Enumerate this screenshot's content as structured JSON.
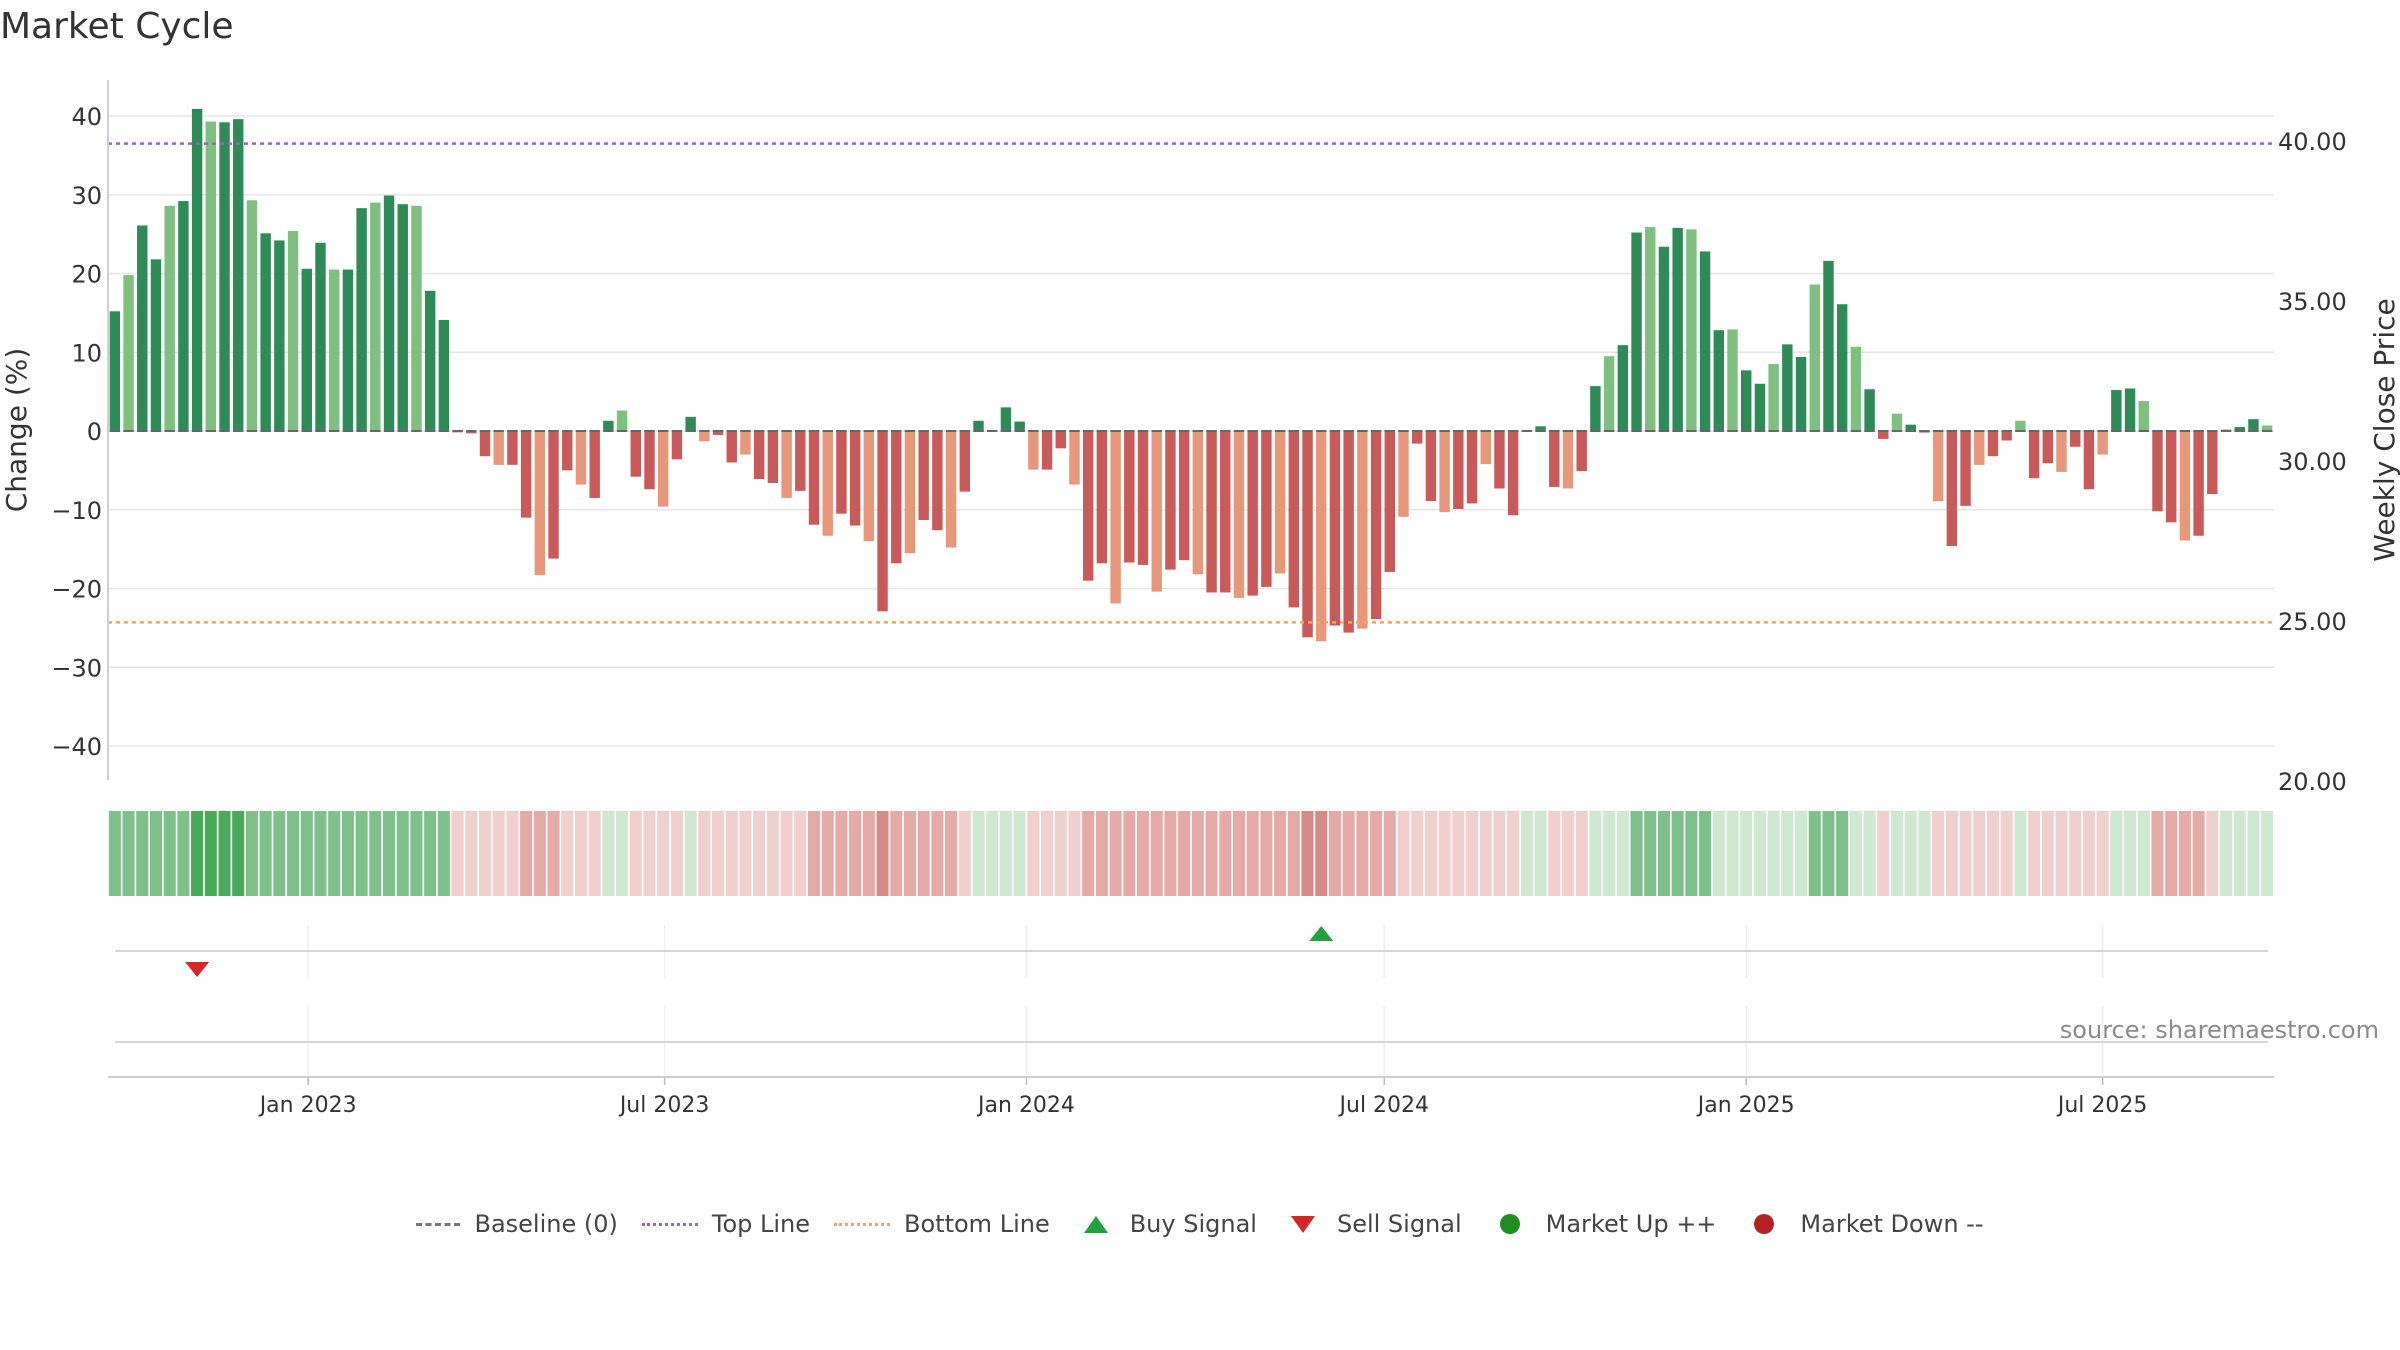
{
  "title": "Market Cycle",
  "source": "source: sharemaestro.com",
  "chart_data": {
    "type": "bar",
    "title": "Market Cycle",
    "ylabel": "Change (%)",
    "y2label": "Weekly Close Price",
    "ylim": [
      -44,
      44
    ],
    "y2lim": [
      20,
      42
    ],
    "yticks": [
      {
        "v": 40,
        "label": "40"
      },
      {
        "v": 30,
        "label": "30"
      },
      {
        "v": 20,
        "label": "20"
      },
      {
        "v": 10,
        "label": "10"
      },
      {
        "v": 0,
        "label": "0"
      },
      {
        "v": -10,
        "label": "−10"
      },
      {
        "v": -20,
        "label": "−20"
      },
      {
        "v": -30,
        "label": "−30"
      },
      {
        "v": -40,
        "label": "−40"
      }
    ],
    "y2ticks": [
      {
        "v": 40,
        "label": "40.00"
      },
      {
        "v": 35,
        "label": "35.00"
      },
      {
        "v": 30,
        "label": "30.00"
      },
      {
        "v": 25,
        "label": "25.00"
      },
      {
        "v": 20,
        "label": "20.00"
      }
    ],
    "xticks": [
      {
        "w": 14.6,
        "label": "Jan 2023"
      },
      {
        "w": 40.6,
        "label": "Jul 2023"
      },
      {
        "w": 67.0,
        "label": "Jan 2024"
      },
      {
        "w": 93.1,
        "label": "Jul 2024"
      },
      {
        "w": 119.5,
        "label": "Jan 2025"
      },
      {
        "w": 145.5,
        "label": "Jul 2025"
      }
    ],
    "grid": true,
    "top_line": 36.5,
    "bottom_line": -24.3,
    "values": [
      15.2,
      19.8,
      26.1,
      21.8,
      28.6,
      29.2,
      40.9,
      39.3,
      39.2,
      39.6,
      29.3,
      25.1,
      24.2,
      25.4,
      20.6,
      23.9,
      20.5,
      20.5,
      28.3,
      29.0,
      29.9,
      28.8,
      28.6,
      17.8,
      14.1,
      -0.2,
      -0.3,
      -3.2,
      -4.3,
      -4.3,
      -11.0,
      -18.3,
      -16.2,
      -5.0,
      -6.8,
      -8.5,
      1.3,
      2.6,
      -5.8,
      -7.4,
      -9.6,
      -3.6,
      1.8,
      -1.3,
      -0.5,
      -4.0,
      -3.0,
      -6.1,
      -6.6,
      -8.5,
      -7.6,
      -11.9,
      -13.3,
      -10.5,
      -12.0,
      -14.0,
      -22.9,
      -16.8,
      -15.5,
      -11.3,
      -12.6,
      -14.8,
      -7.7,
      1.3,
      0.1,
      3.0,
      1.2,
      -4.9,
      -4.9,
      -2.2,
      -6.8,
      -19.0,
      -16.8,
      -21.9,
      -16.7,
      -17.0,
      -20.4,
      -17.6,
      -16.4,
      -18.2,
      -20.5,
      -20.5,
      -21.2,
      -20.9,
      -19.8,
      -18.1,
      -22.4,
      -26.2,
      -26.7,
      -24.7,
      -25.6,
      -25.1,
      -23.9,
      -17.9,
      -10.9,
      -1.6,
      -8.9,
      -10.3,
      -9.9,
      -9.2,
      -4.2,
      -7.3,
      -10.7,
      0.1,
      0.6,
      -7.1,
      -7.3,
      -5.1,
      5.7,
      9.5,
      10.9,
      25.2,
      25.9,
      23.4,
      25.8,
      25.6,
      22.8,
      12.8,
      12.9,
      7.7,
      6.0,
      8.5,
      11.0,
      9.4,
      18.6,
      21.6,
      16.1,
      10.7,
      5.3,
      -1.0,
      2.2,
      0.8,
      -0.2,
      -8.9,
      -14.6,
      -9.5,
      -4.3,
      -3.2,
      -1.2,
      1.3,
      -6.0,
      -4.1,
      -5.2,
      -2.0,
      -7.4,
      -3.0,
      5.2,
      5.4,
      3.8,
      -10.2,
      -11.6,
      -13.9,
      -13.3,
      -8.0,
      0.2,
      0.5,
      1.5,
      0.7
    ],
    "background_strip": [
      "g2",
      "g2",
      "g2",
      "g2",
      "g2",
      "g2",
      "g3",
      "g3",
      "g3",
      "g3",
      "g2",
      "g2",
      "g2",
      "g2",
      "g2",
      "g2",
      "g2",
      "g2",
      "g2",
      "g2",
      "g2",
      "g2",
      "g2",
      "g2",
      "g2",
      "r1",
      "r1",
      "r1",
      "r1",
      "r1",
      "r2",
      "r2",
      "r2",
      "r1",
      "r1",
      "r1",
      "g1",
      "g1",
      "r1",
      "r1",
      "r1",
      "r1",
      "g1",
      "r1",
      "r1",
      "r1",
      "r1",
      "r1",
      "r1",
      "r1",
      "r1",
      "r2",
      "r2",
      "r2",
      "r2",
      "r2",
      "r3",
      "r2",
      "r2",
      "r2",
      "r2",
      "r2",
      "r1",
      "g1",
      "g1",
      "g1",
      "g1",
      "r1",
      "r1",
      "r1",
      "r1",
      "r2",
      "r2",
      "r2",
      "r2",
      "r2",
      "r2",
      "r2",
      "r2",
      "r2",
      "r2",
      "r2",
      "r2",
      "r2",
      "r2",
      "r2",
      "r2",
      "r3",
      "r3",
      "r2",
      "r2",
      "r2",
      "r2",
      "r2",
      "r1",
      "r1",
      "r1",
      "r1",
      "r1",
      "r1",
      "r1",
      "r1",
      "r1",
      "g1",
      "g1",
      "r1",
      "r1",
      "r1",
      "g1",
      "g1",
      "g1",
      "g2",
      "g2",
      "g2",
      "g2",
      "g2",
      "g2",
      "g1",
      "g1",
      "g1",
      "g1",
      "g1",
      "g1",
      "g1",
      "g2",
      "g2",
      "g2",
      "g1",
      "g1",
      "r1",
      "g1",
      "g1",
      "g1",
      "r1",
      "r1",
      "r1",
      "r1",
      "r1",
      "r1",
      "g1",
      "r1",
      "r1",
      "r1",
      "r1",
      "r1",
      "r1",
      "g1",
      "g1",
      "g1",
      "r2",
      "r2",
      "r2",
      "r2",
      "r1",
      "g1",
      "g1",
      "g1",
      "g1"
    ],
    "signals": [
      {
        "type": "sell",
        "week": 6
      },
      {
        "type": "buy",
        "week": 88
      }
    ],
    "colors": {
      "up_strong": "#2e8b57",
      "up_weak": "#7fbf7f",
      "down_strong": "#c85a5a",
      "down_weak": "#e8987a",
      "top_line": "#9467bd",
      "bottom_line": "#f4a460",
      "buy": "#23a040",
      "sell": "#d62728",
      "market_up": "#228b22",
      "market_down": "#b22222"
    }
  },
  "legend": {
    "baseline": "Baseline (0)",
    "top_line": "Top Line",
    "bottom_line": "Bottom Line",
    "buy": "Buy Signal",
    "sell": "Sell Signal",
    "market_up": "Market Up ++",
    "market_down": "Market Down --"
  }
}
